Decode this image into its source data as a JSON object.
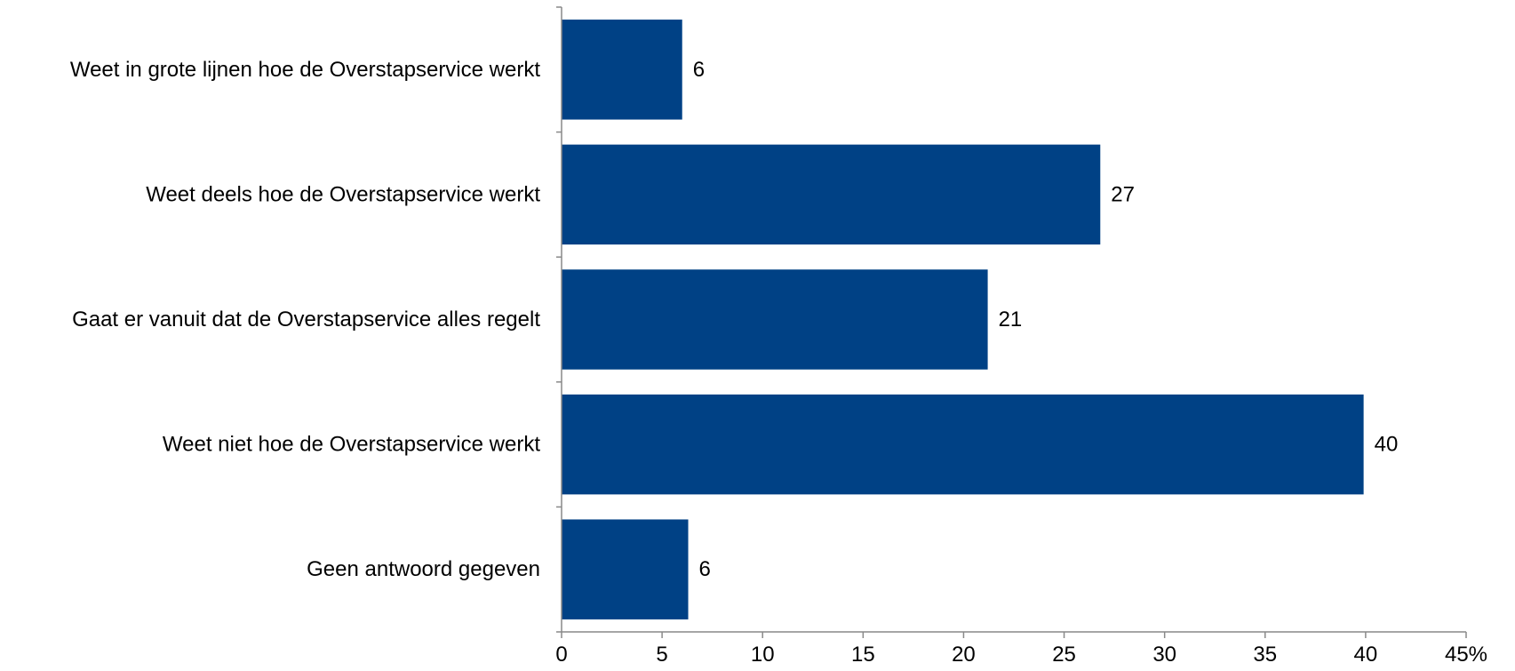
{
  "chart_data": {
    "type": "bar",
    "orientation": "horizontal",
    "categories": [
      "Weet in grote lijnen hoe de Overstapservice werkt",
      "Weet deels hoe de Overstapservice werkt",
      "Gaat er vanuit dat de Overstapservice alles regelt",
      "Weet niet hoe de Overstapservice werkt",
      "Geen antwoord gegeven"
    ],
    "values": [
      6.0,
      26.8,
      21.2,
      39.9,
      6.3
    ],
    "data_labels": [
      "6",
      "27",
      "21",
      "40",
      "6"
    ],
    "xlim": [
      0,
      45
    ],
    "x_ticks": [
      0,
      5,
      10,
      15,
      20,
      25,
      30,
      35,
      40,
      45
    ],
    "x_tick_labels": [
      "0",
      "5",
      "10",
      "15",
      "20",
      "25",
      "30",
      "35",
      "40",
      "45%"
    ],
    "title": "",
    "xlabel": "",
    "ylabel": "",
    "grid": false,
    "legend": "none",
    "colors": {
      "bar": "#004185",
      "axis": "#898989",
      "text": "#000000"
    }
  }
}
